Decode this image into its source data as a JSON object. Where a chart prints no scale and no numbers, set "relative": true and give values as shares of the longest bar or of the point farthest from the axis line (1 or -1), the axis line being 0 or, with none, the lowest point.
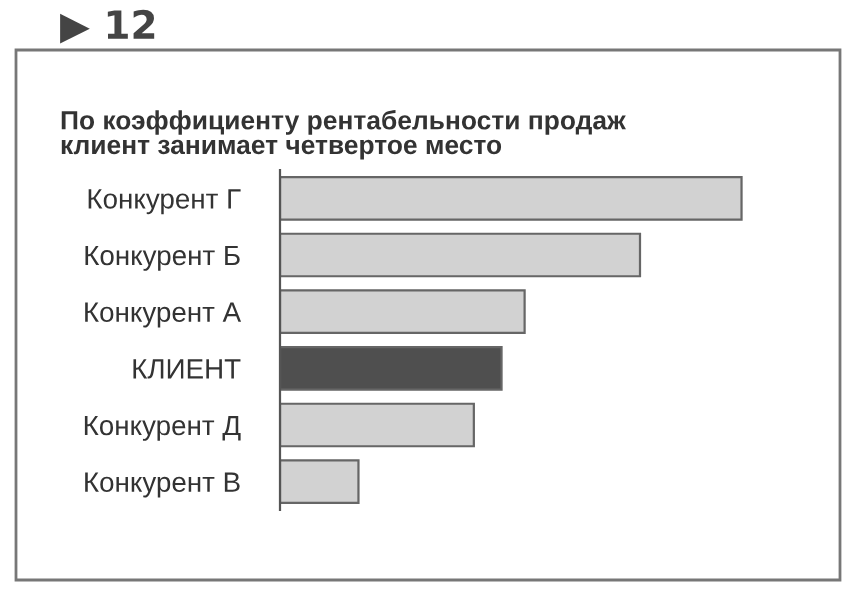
{
  "chart_data": {
    "type": "bar",
    "orientation": "horizontal",
    "relative": true,
    "title": "По коэффициенту рентабельности продаж\nклиент занимает четвертое место",
    "annotations": [
      "▶ 12"
    ],
    "categories": [
      "Конкурент Г",
      "Конкурент Б",
      "Конкурент А",
      "КЛИЕНТ",
      "Конкурент Д",
      "Конкурент В"
    ],
    "values": [
      1,
      0.78,
      0.53,
      0.48,
      0.42,
      0.17
    ],
    "colors": [
      "#d2d2d2",
      "#d2d2d2",
      "#d2d2d2",
      "#4f4f4f",
      "#d2d2d2",
      "#d2d2d2"
    ],
    "grid": false,
    "legend": false
  }
}
